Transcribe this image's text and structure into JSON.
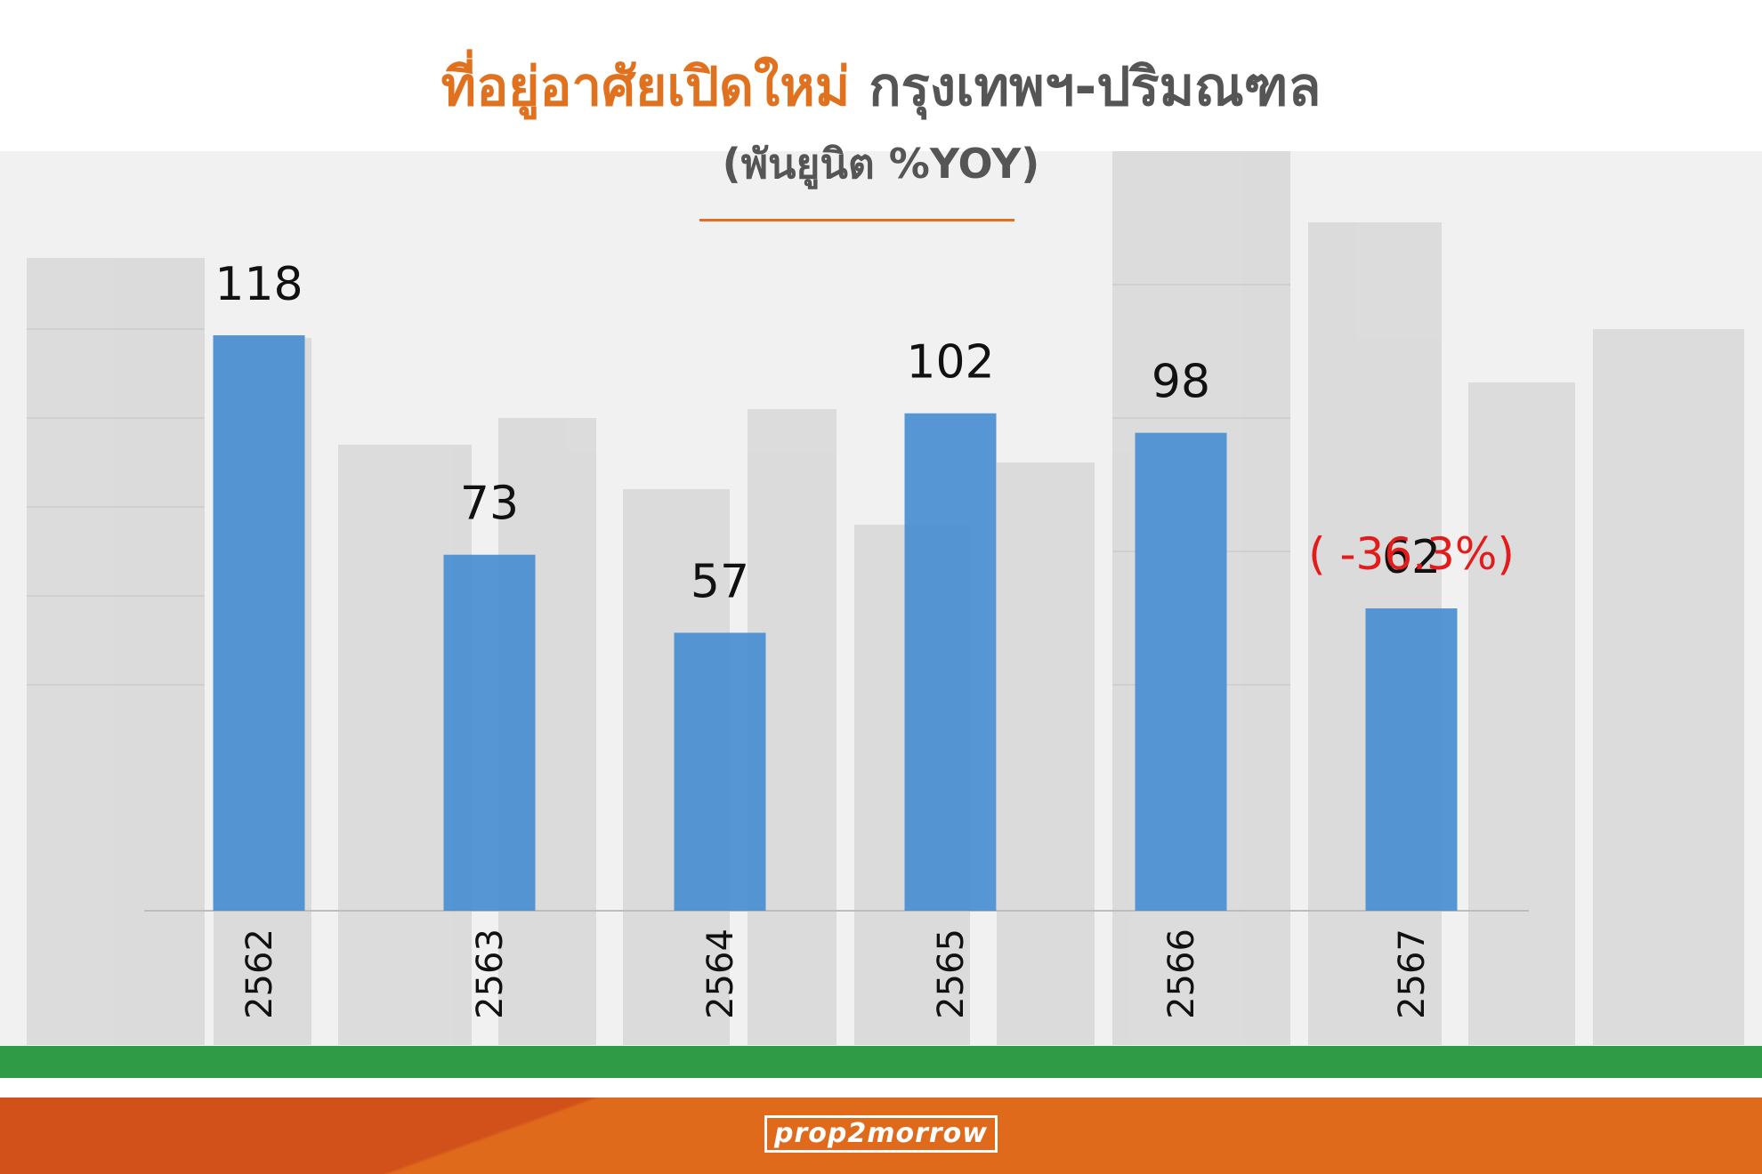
{
  "header": {
    "title_highlight": "ที่อยู่อาศัยเปิดใหม่",
    "title_rest": "กรุงเทพฯ-ปริมณฑล",
    "subtitle": "(พันยูนิต %YOY)"
  },
  "footer": {
    "logo_text": "prop2morrow"
  },
  "chart_data": {
    "type": "bar",
    "title": "ที่อยู่อาศัยเปิดใหม่ กรุงเทพฯ-ปริมณฑล",
    "subtitle": "(พันยูนิต %YOY)",
    "categories": [
      "2562",
      "2563",
      "2564",
      "2565",
      "2566",
      "2567"
    ],
    "values": [
      118,
      73,
      57,
      102,
      98,
      62
    ],
    "data_labels": [
      "118",
      "73",
      "57",
      "102",
      "98",
      "62"
    ],
    "annotations": [
      {
        "category": "2567",
        "text": "( -36.3%)",
        "color": "#e31b1b"
      }
    ],
    "ylim": [
      0,
      118
    ],
    "grid": false,
    "legend": "none",
    "bar_color": "#4a8ed1",
    "title_colors": {
      "highlight": "#e0721f",
      "rest": "#555555"
    }
  }
}
